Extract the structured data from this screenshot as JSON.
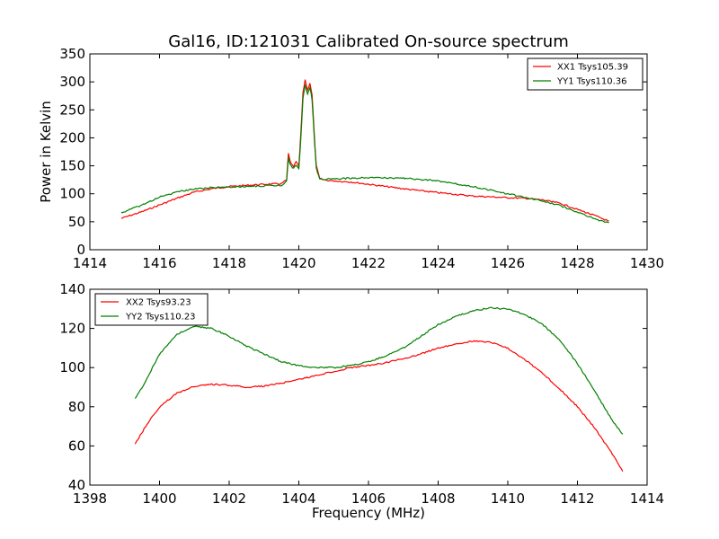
{
  "colors": {
    "red": "#ff0000",
    "green": "#008000"
  },
  "chart_data": [
    {
      "type": "line",
      "title": "Gal16, ID:121031 Calibrated On-source spectrum",
      "xlabel": "",
      "ylabel": "Power in Kelvin",
      "xlim": [
        1414,
        1430
      ],
      "ylim": [
        0,
        350
      ],
      "xticks": [
        1414,
        1416,
        1418,
        1420,
        1422,
        1424,
        1426,
        1428,
        1430
      ],
      "yticks": [
        0,
        50,
        100,
        150,
        200,
        250,
        300,
        350
      ],
      "grid": false,
      "legend_position": "top-right",
      "series": [
        {
          "name": "XX1 Tsys105.39",
          "color": "red",
          "points": [
            [
              1414.9,
              56
            ],
            [
              1415.5,
              68
            ],
            [
              1416,
              80
            ],
            [
              1416.5,
              92
            ],
            [
              1417,
              103
            ],
            [
              1417.5,
              109
            ],
            [
              1418,
              113
            ],
            [
              1418.5,
              115
            ],
            [
              1419,
              117
            ],
            [
              1419.5,
              118
            ],
            [
              1419.65,
              125
            ],
            [
              1419.7,
              172
            ],
            [
              1419.75,
              158
            ],
            [
              1419.85,
              147
            ],
            [
              1419.92,
              158
            ],
            [
              1420,
              148
            ],
            [
              1420.05,
              200
            ],
            [
              1420.12,
              280
            ],
            [
              1420.18,
              304
            ],
            [
              1420.25,
              285
            ],
            [
              1420.32,
              298
            ],
            [
              1420.38,
              276
            ],
            [
              1420.45,
              200
            ],
            [
              1420.5,
              150
            ],
            [
              1420.6,
              127
            ],
            [
              1420.8,
              124
            ],
            [
              1421.5,
              121
            ],
            [
              1422,
              117
            ],
            [
              1423,
              109
            ],
            [
              1424,
              102
            ],
            [
              1425,
              96
            ],
            [
              1426,
              93
            ],
            [
              1426.5,
              92
            ],
            [
              1427,
              89
            ],
            [
              1427.5,
              83
            ],
            [
              1428,
              72
            ],
            [
              1428.5,
              61
            ],
            [
              1428.9,
              51
            ]
          ]
        },
        {
          "name": "YY1 Tsys110.36",
          "color": "green",
          "points": [
            [
              1414.9,
              66
            ],
            [
              1415.5,
              80
            ],
            [
              1416,
              94
            ],
            [
              1416.5,
              103
            ],
            [
              1417,
              109
            ],
            [
              1417.5,
              111
            ],
            [
              1418,
              112
            ],
            [
              1418.5,
              113
            ],
            [
              1419,
              114
            ],
            [
              1419.5,
              115
            ],
            [
              1419.65,
              123
            ],
            [
              1419.7,
              165
            ],
            [
              1419.75,
              152
            ],
            [
              1419.85,
              145
            ],
            [
              1419.92,
              152
            ],
            [
              1420,
              145
            ],
            [
              1420.05,
              190
            ],
            [
              1420.12,
              270
            ],
            [
              1420.18,
              294
            ],
            [
              1420.25,
              278
            ],
            [
              1420.32,
              290
            ],
            [
              1420.38,
              268
            ],
            [
              1420.45,
              195
            ],
            [
              1420.5,
              145
            ],
            [
              1420.6,
              126
            ],
            [
              1420.8,
              126
            ],
            [
              1421.5,
              128
            ],
            [
              1422,
              129
            ],
            [
              1423,
              128
            ],
            [
              1424,
              123
            ],
            [
              1425,
              113
            ],
            [
              1426,
              100
            ],
            [
              1426.5,
              94
            ],
            [
              1427,
              87
            ],
            [
              1427.5,
              79
            ],
            [
              1428,
              67
            ],
            [
              1428.5,
              55
            ],
            [
              1428.9,
              48
            ]
          ]
        }
      ]
    },
    {
      "type": "line",
      "title": "",
      "xlabel": "Frequency (MHz)",
      "ylabel": "",
      "xlim": [
        1398,
        1414
      ],
      "ylim": [
        40,
        140
      ],
      "xticks": [
        1398,
        1400,
        1402,
        1404,
        1406,
        1408,
        1410,
        1412,
        1414
      ],
      "yticks": [
        40,
        60,
        80,
        100,
        120,
        140
      ],
      "grid": false,
      "legend_position": "top-left",
      "series": [
        {
          "name": "XX2 Tsys93.23",
          "color": "red",
          "points": [
            [
              1399.3,
              61
            ],
            [
              1399.6,
              70
            ],
            [
              1400,
              80
            ],
            [
              1400.5,
              87
            ],
            [
              1401,
              90.5
            ],
            [
              1401.5,
              91.5
            ],
            [
              1402,
              91
            ],
            [
              1402.5,
              90
            ],
            [
              1403,
              90.5
            ],
            [
              1403.5,
              92
            ],
            [
              1404,
              94
            ],
            [
              1404.5,
              96
            ],
            [
              1405,
              98
            ],
            [
              1405.5,
              100
            ],
            [
              1406,
              101
            ],
            [
              1406.5,
              102.5
            ],
            [
              1407,
              104.5
            ],
            [
              1407.5,
              107
            ],
            [
              1408,
              110
            ],
            [
              1408.5,
              112
            ],
            [
              1409,
              113.5
            ],
            [
              1409.5,
              113
            ],
            [
              1410,
              110
            ],
            [
              1410.5,
              104
            ],
            [
              1411,
              97
            ],
            [
              1411.5,
              89
            ],
            [
              1412,
              80
            ],
            [
              1412.5,
              69
            ],
            [
              1413,
              56
            ],
            [
              1413.3,
              47
            ]
          ]
        },
        {
          "name": "YY2 Tsys110.23",
          "color": "green",
          "points": [
            [
              1399.3,
              84
            ],
            [
              1399.6,
              93
            ],
            [
              1400,
              107
            ],
            [
              1400.5,
              117
            ],
            [
              1401,
              121
            ],
            [
              1401.5,
              120
            ],
            [
              1402,
              116
            ],
            [
              1402.5,
              111
            ],
            [
              1403,
              107
            ],
            [
              1403.5,
              103
            ],
            [
              1404,
              101
            ],
            [
              1404.5,
              100
            ],
            [
              1405,
              100
            ],
            [
              1405.5,
              101
            ],
            [
              1406,
              103
            ],
            [
              1406.5,
              106
            ],
            [
              1407,
              110
            ],
            [
              1407.5,
              116
            ],
            [
              1408,
              122
            ],
            [
              1408.5,
              126
            ],
            [
              1409,
              129
            ],
            [
              1409.5,
              130.5
            ],
            [
              1410,
              130
            ],
            [
              1410.5,
              127
            ],
            [
              1411,
              122
            ],
            [
              1411.5,
              114
            ],
            [
              1412,
              102
            ],
            [
              1412.5,
              88
            ],
            [
              1413,
              73
            ],
            [
              1413.3,
              66
            ]
          ]
        }
      ]
    }
  ]
}
